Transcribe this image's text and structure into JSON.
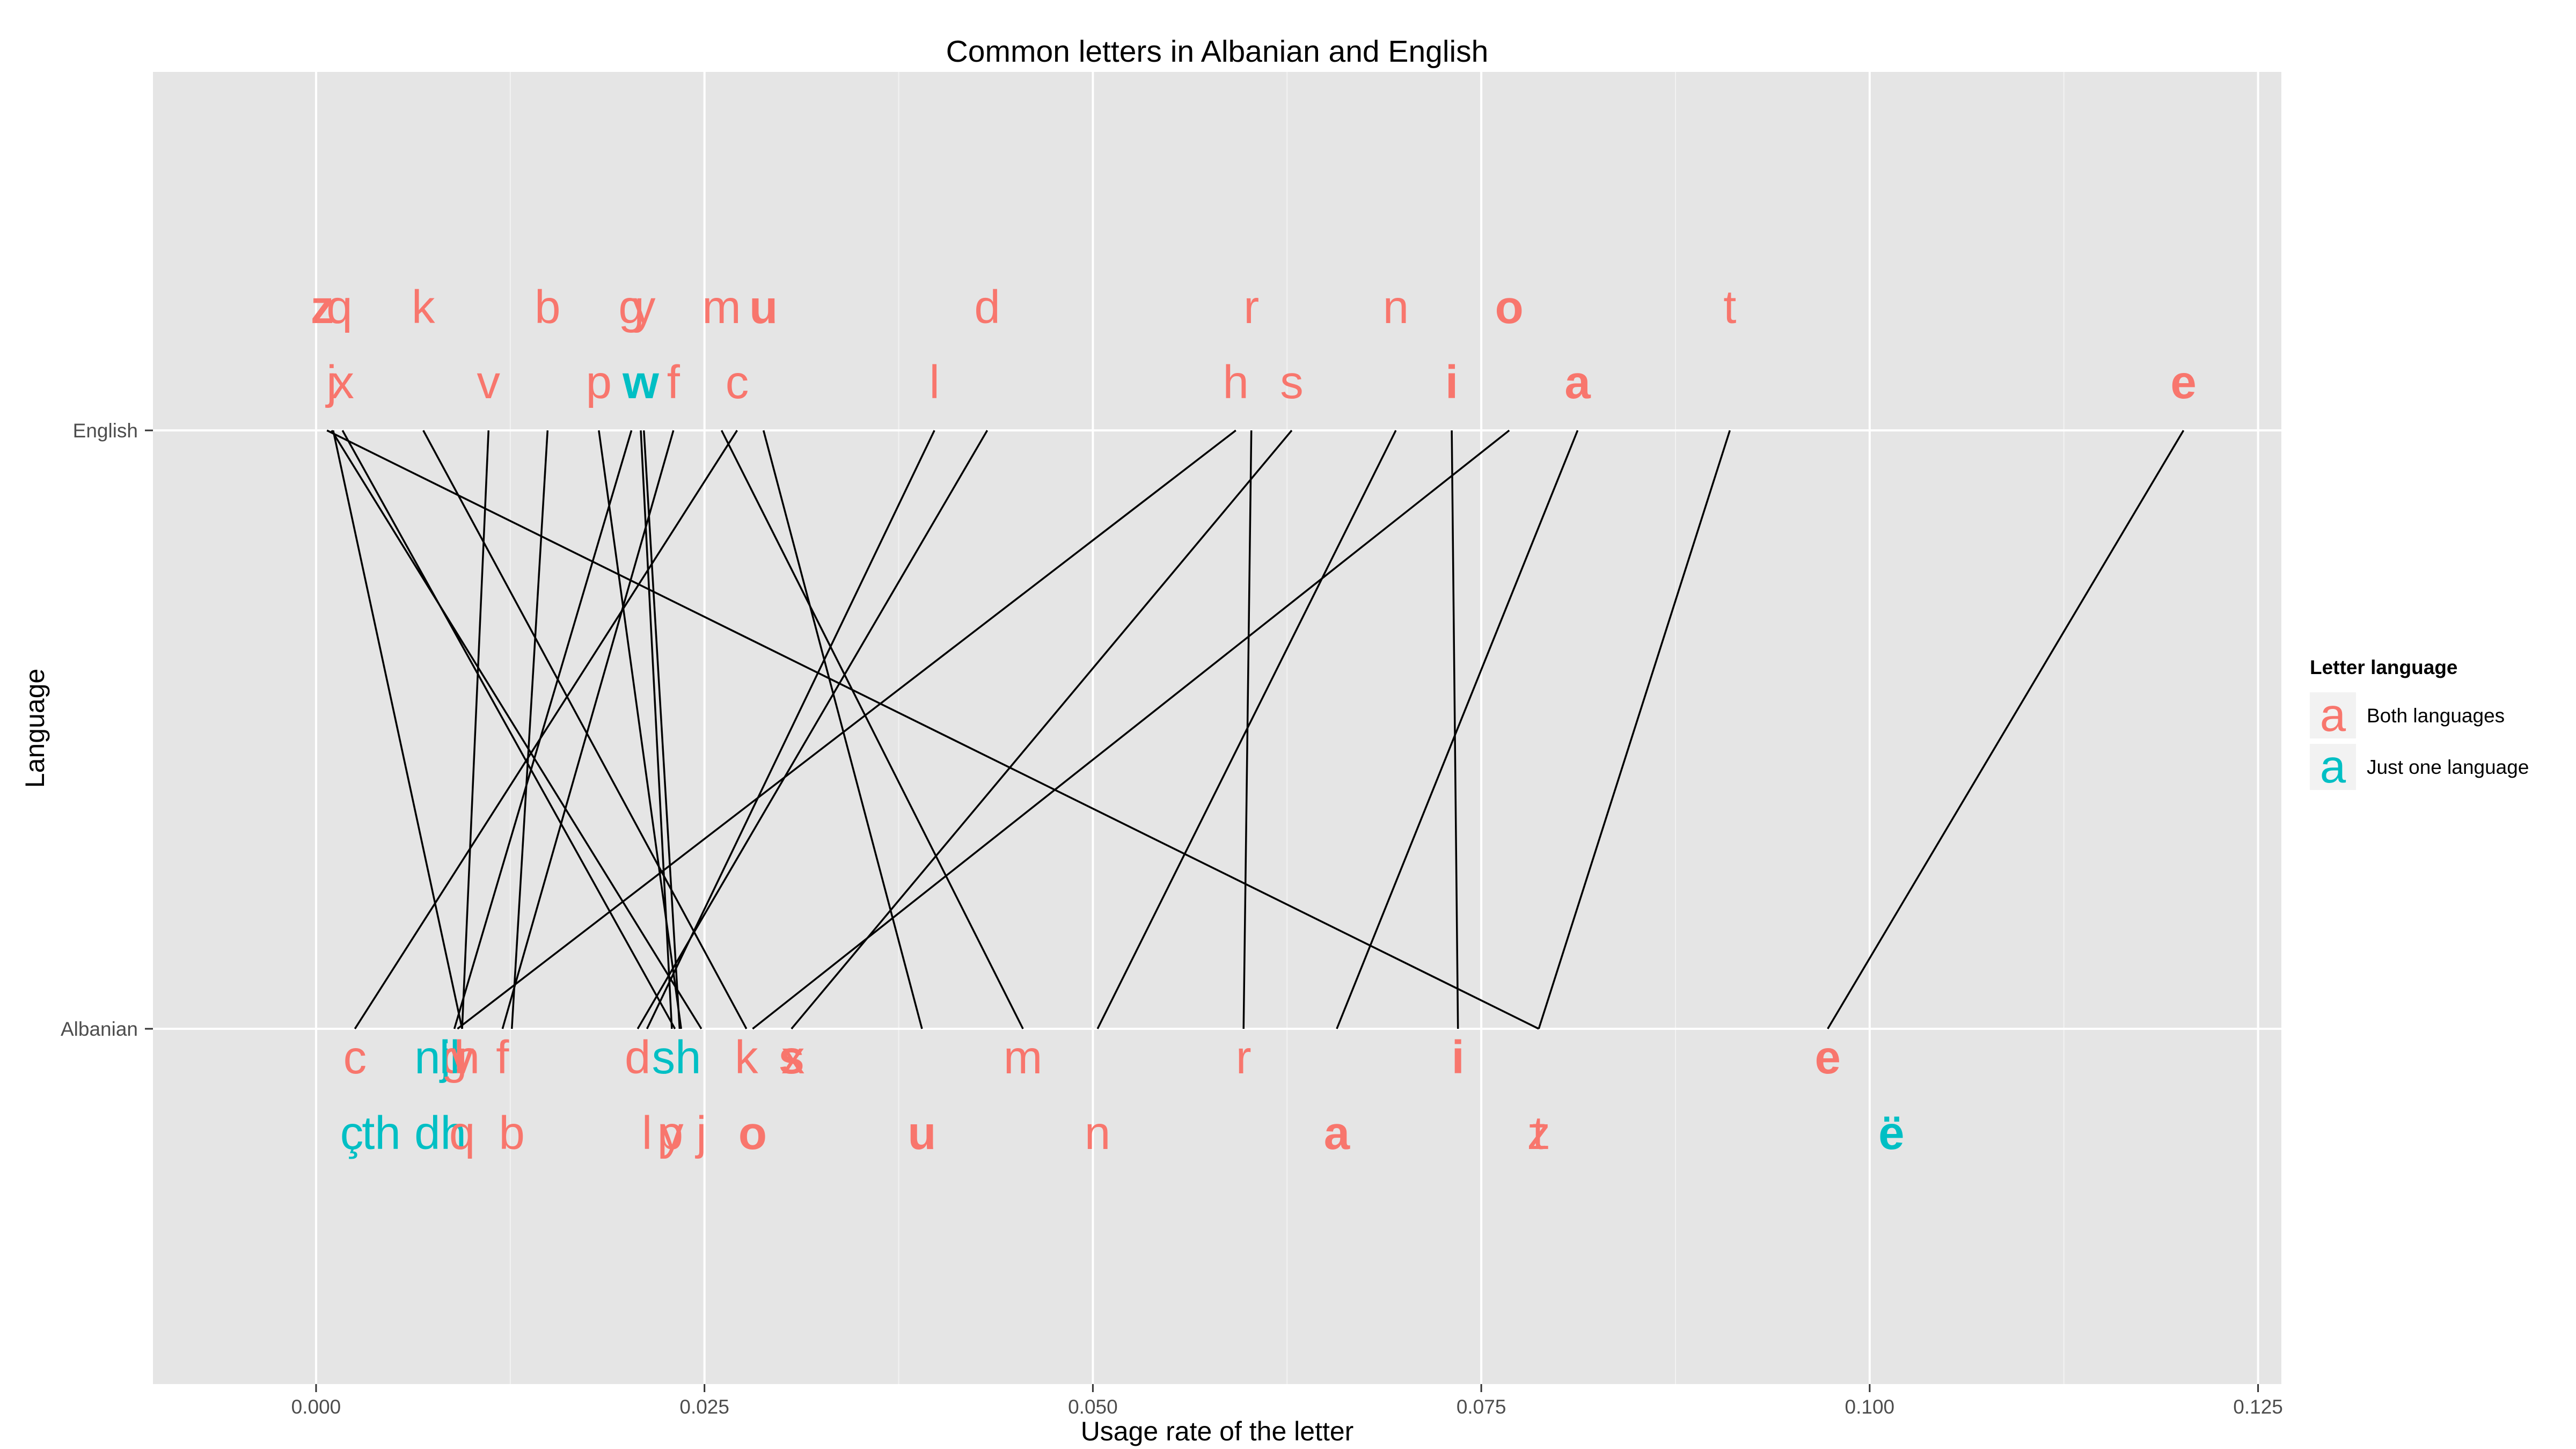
{
  "chart_data": {
    "type": "scatter",
    "title": "Common letters in Albanian and English",
    "xlabel": "Usage rate of the letter",
    "ylabel": "Language",
    "xlim": [
      -0.0105,
      0.1265
    ],
    "x_ticks": [
      "0.000",
      "0.025",
      "0.050",
      "0.075",
      "0.100",
      "0.125"
    ],
    "y_categories": [
      "Albanian",
      "English"
    ],
    "grid": true,
    "legend": {
      "title": "Letter language",
      "placement": "right",
      "items": [
        {
          "key": "both",
          "label": "Both languages",
          "symbol": "a",
          "color": "#F8766D"
        },
        {
          "key": "one",
          "label": "Just one language",
          "symbol": "a",
          "color": "#00BFC4"
        }
      ]
    },
    "connections": [
      {
        "letter": "e",
        "english": 0.1202,
        "albanian": 0.0973
      },
      {
        "letter": "t",
        "english": 0.091,
        "albanian": 0.0787
      },
      {
        "letter": "a",
        "english": 0.0812,
        "albanian": 0.0657
      },
      {
        "letter": "o",
        "english": 0.0768,
        "albanian": 0.0281
      },
      {
        "letter": "i",
        "english": 0.0731,
        "albanian": 0.0735
      },
      {
        "letter": "n",
        "english": 0.0695,
        "albanian": 0.0503
      },
      {
        "letter": "s",
        "english": 0.0628,
        "albanian": 0.0306
      },
      {
        "letter": "r",
        "english": 0.0602,
        "albanian": 0.0597
      },
      {
        "letter": "h",
        "english": 0.0592,
        "albanian": 0.0091
      },
      {
        "letter": "d",
        "english": 0.0432,
        "albanian": 0.0207
      },
      {
        "letter": "l",
        "english": 0.0398,
        "albanian": 0.0213
      },
      {
        "letter": "u",
        "english": 0.0288,
        "albanian": 0.039
      },
      {
        "letter": "c",
        "english": 0.0271,
        "albanian": 0.0025
      },
      {
        "letter": "m",
        "english": 0.0261,
        "albanian": 0.0455
      },
      {
        "letter": "f",
        "english": 0.023,
        "albanian": 0.012
      },
      {
        "letter": "y",
        "english": 0.0211,
        "albanian": 0.0234
      },
      {
        "letter": "w",
        "english": 0.0209,
        "albanian": 0.0229
      },
      {
        "letter": "g",
        "english": 0.0203,
        "albanian": 0.0089
      },
      {
        "letter": "p",
        "english": 0.0182,
        "albanian": 0.0235
      },
      {
        "letter": "b",
        "english": 0.0149,
        "albanian": 0.0126
      },
      {
        "letter": "v",
        "english": 0.0111,
        "albanian": 0.0094
      },
      {
        "letter": "k",
        "english": 0.0069,
        "albanian": 0.0277
      },
      {
        "letter": "x",
        "english": 0.0017,
        "albanian": 0.0231
      },
      {
        "letter": "q",
        "english": 0.0011,
        "albanian": 0.0094
      },
      {
        "letter": "j",
        "english": 0.001,
        "albanian": 0.0248
      },
      {
        "letter": "z",
        "english": 0.0007,
        "albanian": 0.0787
      }
    ],
    "labels": [
      {
        "text": "z",
        "lang": "English",
        "row": 1,
        "x": 0.0004,
        "group": "both",
        "bold": true
      },
      {
        "text": "q",
        "lang": "English",
        "row": 1,
        "x": 0.0015,
        "group": "both",
        "bold": false
      },
      {
        "text": "k",
        "lang": "English",
        "row": 1,
        "x": 0.0069,
        "group": "both",
        "bold": false
      },
      {
        "text": "b",
        "lang": "English",
        "row": 1,
        "x": 0.0149,
        "group": "both",
        "bold": false
      },
      {
        "text": "g",
        "lang": "English",
        "row": 1,
        "x": 0.0203,
        "group": "both",
        "bold": false
      },
      {
        "text": "y",
        "lang": "English",
        "row": 1,
        "x": 0.0211,
        "group": "both",
        "bold": false
      },
      {
        "text": "m",
        "lang": "English",
        "row": 1,
        "x": 0.0261,
        "group": "both",
        "bold": false
      },
      {
        "text": "u",
        "lang": "English",
        "row": 1,
        "x": 0.0288,
        "group": "both",
        "bold": true
      },
      {
        "text": "d",
        "lang": "English",
        "row": 1,
        "x": 0.0432,
        "group": "both",
        "bold": false
      },
      {
        "text": "r",
        "lang": "English",
        "row": 1,
        "x": 0.0602,
        "group": "both",
        "bold": false
      },
      {
        "text": "n",
        "lang": "English",
        "row": 1,
        "x": 0.0695,
        "group": "both",
        "bold": false
      },
      {
        "text": "o",
        "lang": "English",
        "row": 1,
        "x": 0.0768,
        "group": "both",
        "bold": true
      },
      {
        "text": "t",
        "lang": "English",
        "row": 1,
        "x": 0.091,
        "group": "both",
        "bold": false
      },
      {
        "text": "j",
        "lang": "English",
        "row": 0,
        "x": 0.001,
        "group": "both",
        "bold": false
      },
      {
        "text": "x",
        "lang": "English",
        "row": 0,
        "x": 0.0017,
        "group": "both",
        "bold": false
      },
      {
        "text": "v",
        "lang": "English",
        "row": 0,
        "x": 0.0111,
        "group": "both",
        "bold": false
      },
      {
        "text": "p",
        "lang": "English",
        "row": 0,
        "x": 0.0182,
        "group": "both",
        "bold": false
      },
      {
        "text": "w",
        "lang": "English",
        "row": 0,
        "x": 0.0209,
        "group": "one",
        "bold": true
      },
      {
        "text": "f",
        "lang": "English",
        "row": 0,
        "x": 0.023,
        "group": "both",
        "bold": false
      },
      {
        "text": "c",
        "lang": "English",
        "row": 0,
        "x": 0.0271,
        "group": "both",
        "bold": false
      },
      {
        "text": "l",
        "lang": "English",
        "row": 0,
        "x": 0.0398,
        "group": "both",
        "bold": false
      },
      {
        "text": "h",
        "lang": "English",
        "row": 0,
        "x": 0.0592,
        "group": "both",
        "bold": false
      },
      {
        "text": "s",
        "lang": "English",
        "row": 0,
        "x": 0.0628,
        "group": "both",
        "bold": false
      },
      {
        "text": "i",
        "lang": "English",
        "row": 0,
        "x": 0.0731,
        "group": "both",
        "bold": true
      },
      {
        "text": "a",
        "lang": "English",
        "row": 0,
        "x": 0.0812,
        "group": "both",
        "bold": true
      },
      {
        "text": "e",
        "lang": "English",
        "row": 0,
        "x": 0.1202,
        "group": "both",
        "bold": true
      },
      {
        "text": "c",
        "lang": "Albanian",
        "row": 0,
        "x": 0.0025,
        "group": "both",
        "bold": false
      },
      {
        "text": "nj",
        "lang": "Albanian",
        "row": 0,
        "x": 0.0075,
        "group": "one",
        "bold": false
      },
      {
        "text": "g",
        "lang": "Albanian",
        "row": 0,
        "x": 0.0089,
        "group": "both",
        "bold": false
      },
      {
        "text": "ll",
        "lang": "Albanian",
        "row": 0,
        "x": 0.0086,
        "group": "one",
        "bold": false
      },
      {
        "text": "v",
        "lang": "Albanian",
        "row": 0,
        "x": 0.0094,
        "group": "both",
        "bold": false
      },
      {
        "text": "h",
        "lang": "Albanian",
        "row": 0,
        "x": 0.0097,
        "group": "both",
        "bold": false
      },
      {
        "text": "f",
        "lang": "Albanian",
        "row": 0,
        "x": 0.012,
        "group": "both",
        "bold": false
      },
      {
        "text": "d",
        "lang": "Albanian",
        "row": 0,
        "x": 0.0207,
        "group": "both",
        "bold": false
      },
      {
        "text": "sh",
        "lang": "Albanian",
        "row": 0,
        "x": 0.0232,
        "group": "one",
        "bold": false
      },
      {
        "text": "k",
        "lang": "Albanian",
        "row": 0,
        "x": 0.0277,
        "group": "both",
        "bold": false
      },
      {
        "text": "s",
        "lang": "Albanian",
        "row": 0,
        "x": 0.0306,
        "group": "both",
        "bold": true
      },
      {
        "text": "x",
        "lang": "Albanian",
        "row": 0,
        "x": 0.0307,
        "group": "both",
        "bold": false
      },
      {
        "text": "m",
        "lang": "Albanian",
        "row": 0,
        "x": 0.0455,
        "group": "both",
        "bold": false
      },
      {
        "text": "r",
        "lang": "Albanian",
        "row": 0,
        "x": 0.0597,
        "group": "both",
        "bold": false
      },
      {
        "text": "i",
        "lang": "Albanian",
        "row": 0,
        "x": 0.0735,
        "group": "both",
        "bold": true
      },
      {
        "text": "e",
        "lang": "Albanian",
        "row": 0,
        "x": 0.0973,
        "group": "both",
        "bold": true
      },
      {
        "text": "ç",
        "lang": "Albanian",
        "row": 1,
        "x": 0.0023,
        "group": "one",
        "bold": false
      },
      {
        "text": "th",
        "lang": "Albanian",
        "row": 1,
        "x": 0.0042,
        "group": "one",
        "bold": false
      },
      {
        "text": "dh",
        "lang": "Albanian",
        "row": 1,
        "x": 0.008,
        "group": "one",
        "bold": false
      },
      {
        "text": "q",
        "lang": "Albanian",
        "row": 1,
        "x": 0.0094,
        "group": "both",
        "bold": false
      },
      {
        "text": "b",
        "lang": "Albanian",
        "row": 1,
        "x": 0.0126,
        "group": "both",
        "bold": false
      },
      {
        "text": "l",
        "lang": "Albanian",
        "row": 1,
        "x": 0.0213,
        "group": "both",
        "bold": false
      },
      {
        "text": "p",
        "lang": "Albanian",
        "row": 1,
        "x": 0.0228,
        "group": "both",
        "bold": false
      },
      {
        "text": "y",
        "lang": "Albanian",
        "row": 1,
        "x": 0.0229,
        "group": "both",
        "bold": false
      },
      {
        "text": "j",
        "lang": "Albanian",
        "row": 1,
        "x": 0.0248,
        "group": "both",
        "bold": false
      },
      {
        "text": "o",
        "lang": "Albanian",
        "row": 1,
        "x": 0.0281,
        "group": "both",
        "bold": true
      },
      {
        "text": "u",
        "lang": "Albanian",
        "row": 1,
        "x": 0.039,
        "group": "both",
        "bold": true
      },
      {
        "text": "n",
        "lang": "Albanian",
        "row": 1,
        "x": 0.0503,
        "group": "both",
        "bold": false
      },
      {
        "text": "a",
        "lang": "Albanian",
        "row": 1,
        "x": 0.0657,
        "group": "both",
        "bold": true
      },
      {
        "text": "t",
        "lang": "Albanian",
        "row": 1,
        "x": 0.0787,
        "group": "both",
        "bold": false
      },
      {
        "text": "z",
        "lang": "Albanian",
        "row": 1,
        "x": 0.0787,
        "group": "both",
        "bold": false
      },
      {
        "text": "ë",
        "lang": "Albanian",
        "row": 1,
        "x": 0.1014,
        "group": "one",
        "bold": true
      }
    ]
  }
}
